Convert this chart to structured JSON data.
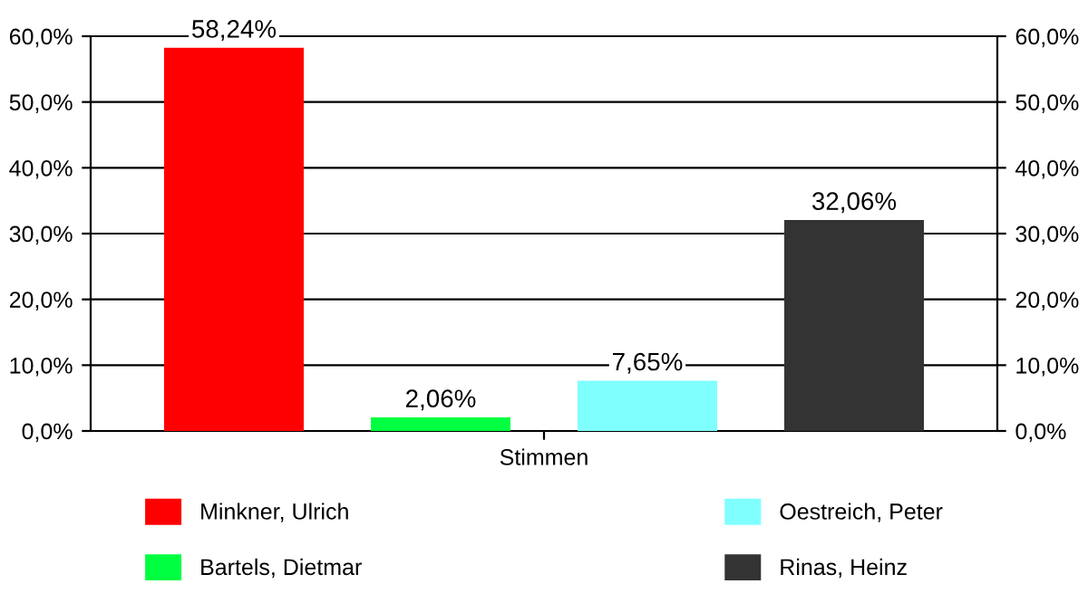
{
  "chart_data": {
    "type": "bar",
    "categories": [
      "Stimmen"
    ],
    "series": [
      {
        "name": "Minkner, Ulrich",
        "color": "#ff0000",
        "values": [
          58.24
        ],
        "value_labels": [
          "58,24%"
        ]
      },
      {
        "name": "Bartels, Dietmar",
        "color": "#00ff40",
        "values": [
          2.06
        ],
        "value_labels": [
          "2,06%"
        ]
      },
      {
        "name": "Oestreich, Peter",
        "color": "#80ffff",
        "values": [
          7.65
        ],
        "value_labels": [
          "7,65%"
        ]
      },
      {
        "name": "Rinas, Heinz",
        "color": "#333333",
        "values": [
          32.06
        ],
        "value_labels": [
          "32,06%"
        ]
      }
    ],
    "ylim": [
      0,
      60
    ],
    "yticks": [
      {
        "value": 0,
        "label": "0,0%"
      },
      {
        "value": 10,
        "label": "10,0%"
      },
      {
        "value": 20,
        "label": "20,0%"
      },
      {
        "value": 30,
        "label": "30,0%"
      },
      {
        "value": 40,
        "label": "40,0%"
      },
      {
        "value": 50,
        "label": "50,0%"
      },
      {
        "value": 60,
        "label": "60,0%"
      }
    ],
    "grid": "y",
    "legend": "bottom"
  }
}
